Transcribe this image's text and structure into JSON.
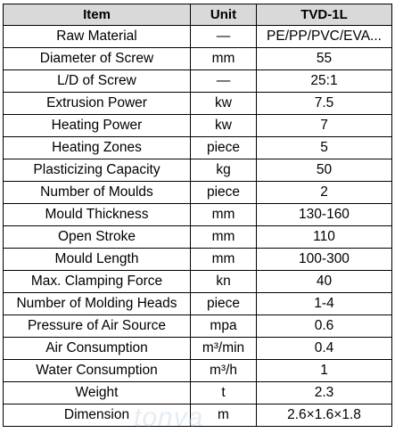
{
  "table": {
    "headers": [
      "Item",
      "Unit",
      "TVD-1L"
    ],
    "rows": [
      [
        "Raw Material",
        "—",
        "PE/PP/PVC/EVA..."
      ],
      [
        "Diameter of Screw",
        "mm",
        "55"
      ],
      [
        "L/D of Screw",
        "—",
        "25:1"
      ],
      [
        "Extrusion Power",
        "kw",
        "7.5"
      ],
      [
        "Heating Power",
        "kw",
        "7"
      ],
      [
        "Heating Zones",
        "piece",
        "5"
      ],
      [
        "Plasticizing Capacity",
        "kg",
        "50"
      ],
      [
        "Number of Moulds",
        "piece",
        "2"
      ],
      [
        "Mould Thickness",
        "mm",
        "130-160"
      ],
      [
        "Open Stroke",
        "mm",
        "110"
      ],
      [
        "Mould Length",
        "mm",
        "100-300"
      ],
      [
        "Max. Clamping Force",
        "kn",
        "40"
      ],
      [
        "Number of Molding Heads",
        "piece",
        "1-4"
      ],
      [
        "Pressure of Air Source",
        "mpa",
        "0.6"
      ],
      [
        "Air Consumption",
        "m³/min",
        "0.4"
      ],
      [
        "Water Consumption",
        "m³/h",
        "1"
      ],
      [
        "Weight",
        "t",
        "2.3"
      ],
      [
        "Dimension",
        "m",
        "2.6×1.6×1.8"
      ]
    ]
  },
  "watermark": {
    "text": "tonva",
    "color": "#cfe0ec"
  }
}
